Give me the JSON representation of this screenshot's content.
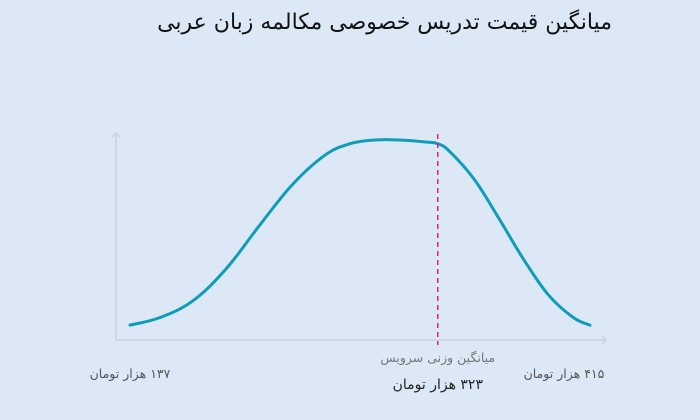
{
  "chart_data": {
    "type": "line",
    "title": "میانگین قیمت تدریس خصوصی مکالمه زبان عربی",
    "x_min_label": "۱۳۷ هزار تومان",
    "x_max_label": "۴۱۵ هزار تومان",
    "mean_label": "میانگین وزنی سرویس",
    "mean_value_label": "۳۲۳ هزار تومان",
    "xlim": [
      137,
      415
    ],
    "mean": 323,
    "series": [
      {
        "x": [
          137,
          155,
          175,
          195,
          215,
          235,
          255,
          270,
          285,
          300,
          315,
          323,
          330,
          345,
          360,
          375,
          390,
          405,
          415
        ],
        "y": [
          0.01,
          0.05,
          0.14,
          0.31,
          0.54,
          0.76,
          0.92,
          0.98,
          1.0,
          1.0,
          0.99,
          0.98,
          0.94,
          0.79,
          0.58,
          0.36,
          0.17,
          0.05,
          0.01
        ]
      }
    ],
    "colors": {
      "curve": "#0e9cbb",
      "mean_line": "#e0245e",
      "axis": "#c3cfdc"
    },
    "grid": false
  }
}
